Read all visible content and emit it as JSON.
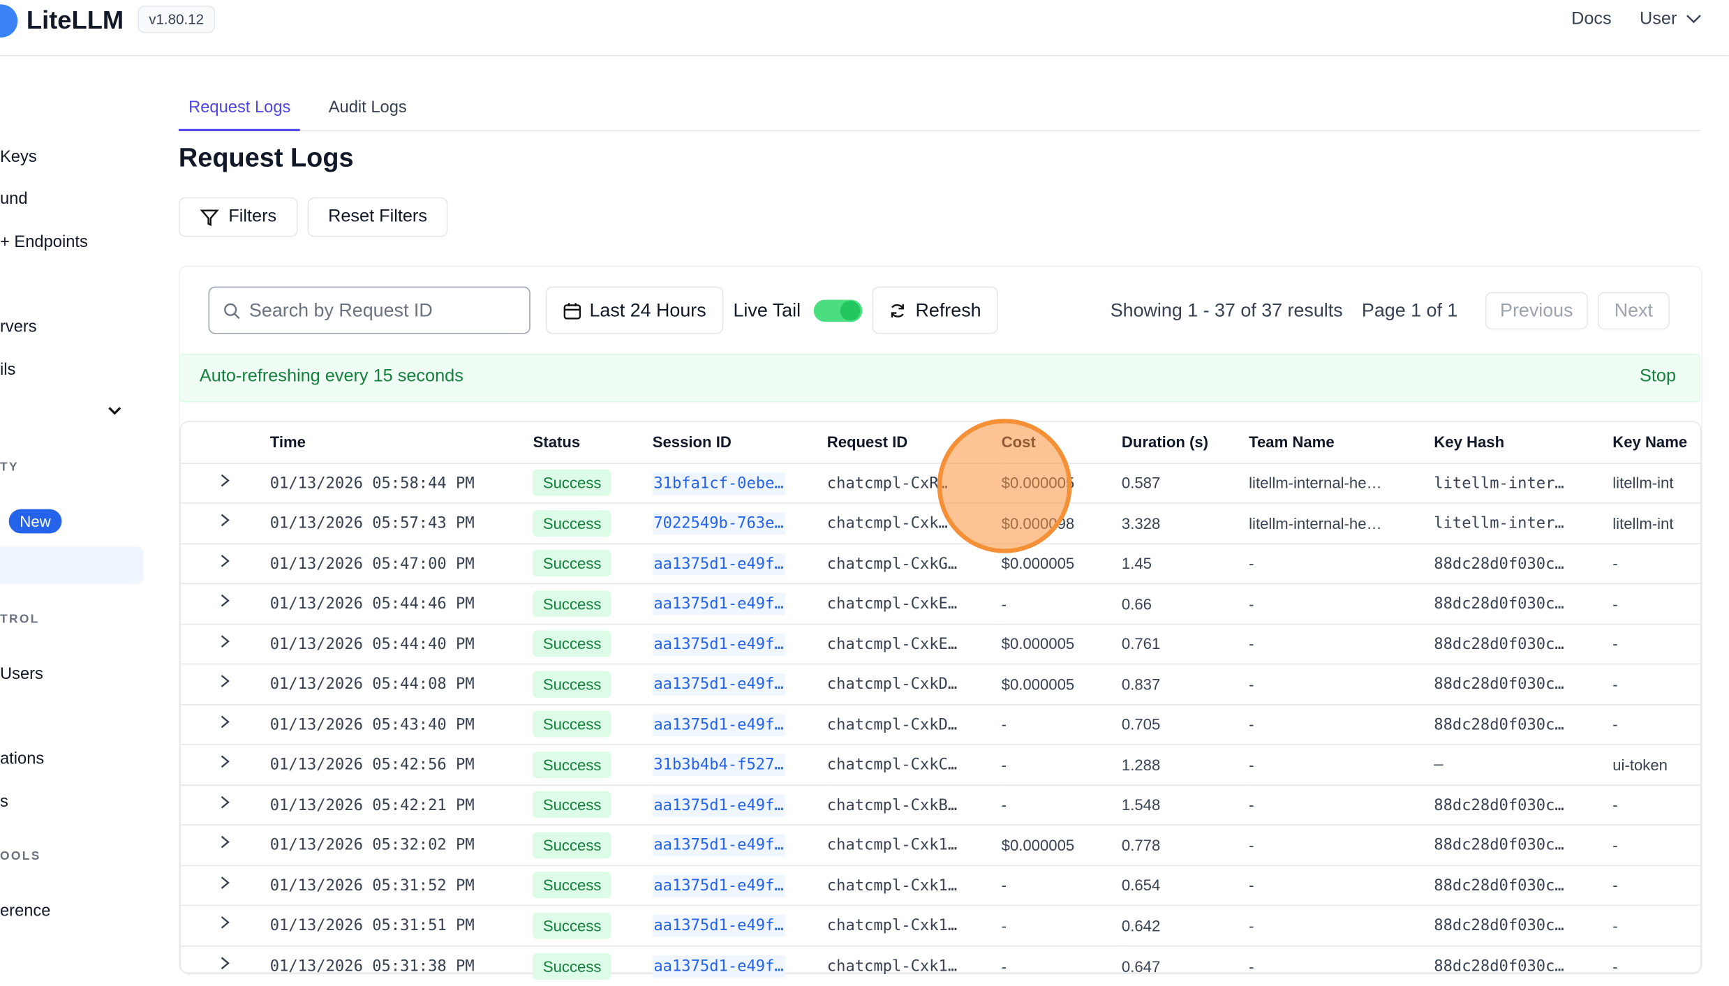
{
  "header": {
    "logo": "LiteLLM",
    "version": "v1.80.12",
    "links": [
      "Docs",
      "User"
    ]
  },
  "sidebar": {
    "items": [
      "Keys",
      "und",
      "+ Endpoints",
      "rvers",
      "ils",
      "TY",
      "New",
      "TROL",
      "Users",
      "ations",
      "s",
      "OOLS",
      "erence"
    ]
  },
  "tabs": [
    "Request Logs",
    "Audit Logs"
  ],
  "page_title": "Request Logs",
  "buttons": {
    "filters": "Filters",
    "reset": "Reset Filters"
  },
  "toolbar": {
    "search_placeholder": "Search by Request ID",
    "time_range": "Last 24 Hours",
    "live_tail": "Live Tail",
    "refresh": "Refresh",
    "showing": "Showing 1 - 37 of 37 results",
    "page": "Page 1 of 1",
    "previous": "Previous",
    "next": "Next"
  },
  "banner": {
    "text": "Auto-refreshing every 15 seconds",
    "action": "Stop"
  },
  "table": {
    "columns": [
      "Time",
      "Status",
      "Session ID",
      "Request ID",
      "Cost",
      "Duration (s)",
      "Team Name",
      "Key Hash",
      "Key Name"
    ],
    "rows": [
      [
        "01/13/2026 05:58:44 PM",
        "Success",
        "31bfa1cf-0ebe…",
        "chatcmpl-CxR…",
        "$0.000005",
        "0.587",
        "litellm-internal-he…",
        "litellm-inter…",
        "litellm-int"
      ],
      [
        "01/13/2026 05:57:43 PM",
        "Success",
        "7022549b-763e…",
        "chatcmpl-Cxk…",
        "$0.000098",
        "3.328",
        "litellm-internal-he…",
        "litellm-inter…",
        "litellm-int"
      ],
      [
        "01/13/2026 05:47:00 PM",
        "Success",
        "aa1375d1-e49f…",
        "chatcmpl-CxkG…",
        "$0.000005",
        "1.45",
        "-",
        "88dc28d0f030c…",
        "-"
      ],
      [
        "01/13/2026 05:44:46 PM",
        "Success",
        "aa1375d1-e49f…",
        "chatcmpl-CxkE…",
        "-",
        "0.66",
        "-",
        "88dc28d0f030c…",
        "-"
      ],
      [
        "01/13/2026 05:44:40 PM",
        "Success",
        "aa1375d1-e49f…",
        "chatcmpl-CxkE…",
        "$0.000005",
        "0.761",
        "-",
        "88dc28d0f030c…",
        "-"
      ],
      [
        "01/13/2026 05:44:08 PM",
        "Success",
        "aa1375d1-e49f…",
        "chatcmpl-CxkD…",
        "$0.000005",
        "0.837",
        "-",
        "88dc28d0f030c…",
        "-"
      ],
      [
        "01/13/2026 05:43:40 PM",
        "Success",
        "aa1375d1-e49f…",
        "chatcmpl-CxkD…",
        "-",
        "0.705",
        "-",
        "88dc28d0f030c…",
        "-"
      ],
      [
        "01/13/2026 05:42:56 PM",
        "Success",
        "31b3b4b4-f527…",
        "chatcmpl-CxkC…",
        "-",
        "1.288",
        "-",
        "–",
        "ui-token"
      ],
      [
        "01/13/2026 05:42:21 PM",
        "Success",
        "aa1375d1-e49f…",
        "chatcmpl-CxkB…",
        "-",
        "1.548",
        "-",
        "88dc28d0f030c…",
        "-"
      ],
      [
        "01/13/2026 05:32:02 PM",
        "Success",
        "aa1375d1-e49f…",
        "chatcmpl-Cxk1…",
        "$0.000005",
        "0.778",
        "-",
        "88dc28d0f030c…",
        "-"
      ],
      [
        "01/13/2026 05:31:52 PM",
        "Success",
        "aa1375d1-e49f…",
        "chatcmpl-Cxk1…",
        "-",
        "0.654",
        "-",
        "88dc28d0f030c…",
        "-"
      ],
      [
        "01/13/2026 05:31:51 PM",
        "Success",
        "aa1375d1-e49f…",
        "chatcmpl-Cxk1…",
        "-",
        "0.642",
        "-",
        "88dc28d0f030c…",
        "-"
      ],
      [
        "01/13/2026 05:31:38 PM",
        "Success",
        "aa1375d1-e49f…",
        "chatcmpl-Cxk1…",
        "-",
        "0.647",
        "-",
        "88dc28d0f030c…",
        "-"
      ]
    ]
  }
}
